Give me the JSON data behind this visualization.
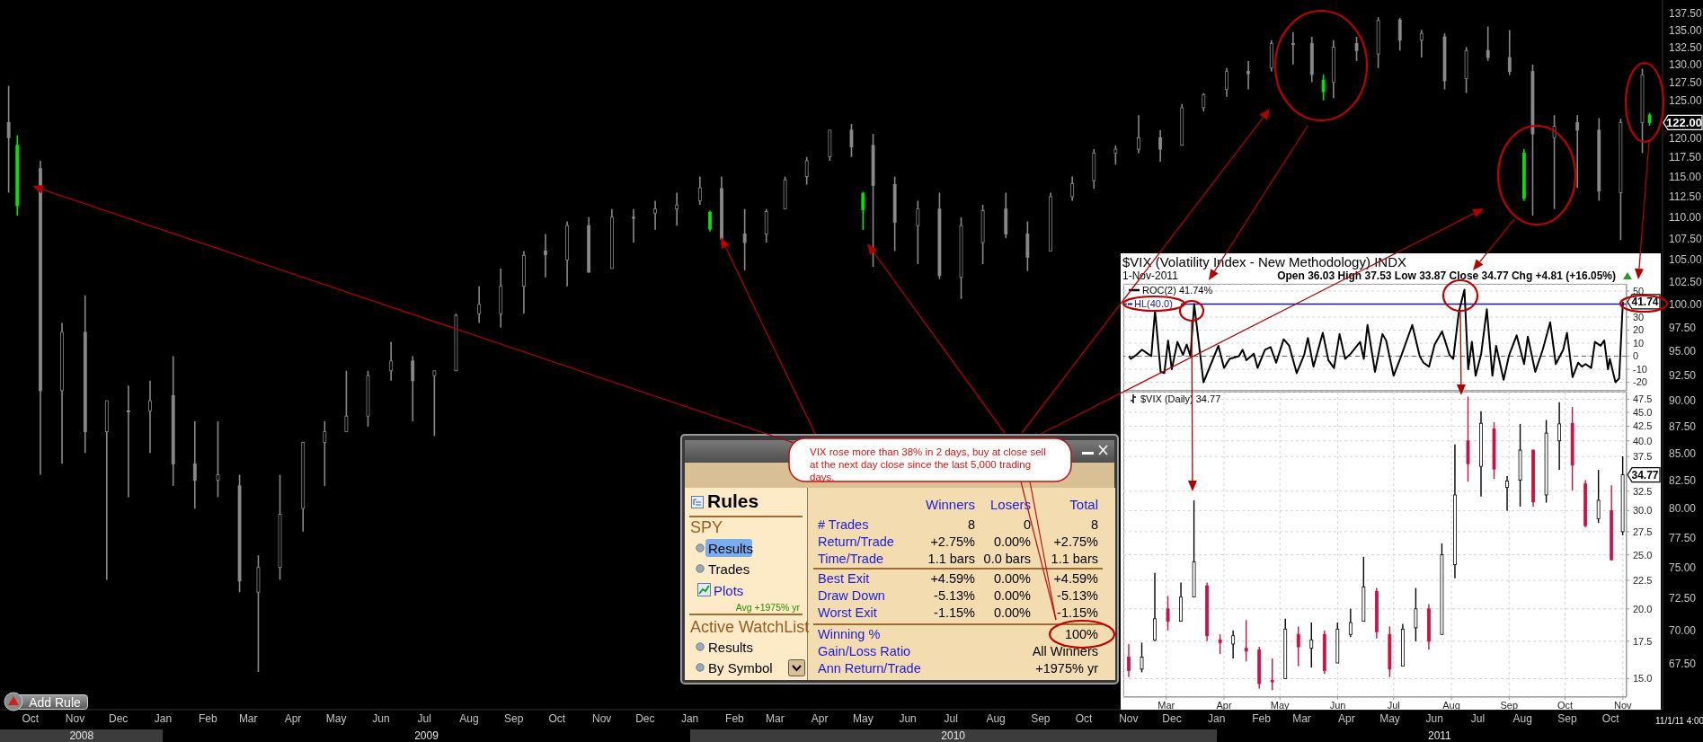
{
  "chart_data": [
    {
      "type": "candlestick",
      "log": "y",
      "ylim": [
        64.2,
        139.5
      ],
      "xlim": [
        "2008-09-10",
        "2011-11-06"
      ],
      "yticks": [
        {
          "value": 67.5,
          "label": "67.50"
        },
        {
          "value": 70,
          "label": "70.00"
        },
        {
          "value": 72.5,
          "label": "72.50"
        },
        {
          "value": 75,
          "label": "75.00"
        },
        {
          "value": 77.5,
          "label": "77.50"
        },
        {
          "value": 80,
          "label": "80.00"
        },
        {
          "value": 82.5,
          "label": "82.50"
        },
        {
          "value": 85,
          "label": "85.00"
        },
        {
          "value": 87.5,
          "label": "87.50"
        },
        {
          "value": 90,
          "label": "90.00"
        },
        {
          "value": 92.5,
          "label": "92.50"
        },
        {
          "value": 95,
          "label": "95.00"
        },
        {
          "value": 97.5,
          "label": "97.50"
        },
        {
          "value": 100,
          "label": "100.00"
        },
        {
          "value": 102.5,
          "label": "102.50"
        },
        {
          "value": 105,
          "label": "105.00"
        },
        {
          "value": 107.5,
          "label": "107.50"
        },
        {
          "value": 110,
          "label": "110.00"
        },
        {
          "value": 112.5,
          "label": "112.50"
        },
        {
          "value": 115,
          "label": "115.00"
        },
        {
          "value": 117.5,
          "label": "117.50"
        },
        {
          "value": 120,
          "label": "120.00"
        },
        {
          "value": 125,
          "label": "125.00"
        },
        {
          "value": 127.5,
          "label": "127.50"
        },
        {
          "value": 130,
          "label": "130.00"
        },
        {
          "value": 132.5,
          "label": "132.50"
        },
        {
          "value": 135,
          "label": "135.00"
        },
        {
          "value": 137.5,
          "label": "137.50"
        }
      ],
      "xticks": [
        {
          "value": "2008-10",
          "label": "Oct"
        },
        {
          "value": "2008-11",
          "label": "Nov"
        },
        {
          "value": "2008-12",
          "label": "Dec"
        },
        {
          "value": "2009-01",
          "label": "Jan"
        },
        {
          "value": "2009-02",
          "label": "Feb"
        },
        {
          "value": "2009-03",
          "label": "Mar"
        },
        {
          "value": "2009-04",
          "label": "Apr"
        },
        {
          "value": "2009-05",
          "label": "May"
        },
        {
          "value": "2009-06",
          "label": "Jun"
        },
        {
          "value": "2009-07",
          "label": "Jul"
        },
        {
          "value": "2009-08",
          "label": "Aug"
        },
        {
          "value": "2009-09",
          "label": "Sep"
        },
        {
          "value": "2009-10",
          "label": "Oct"
        },
        {
          "value": "2009-11",
          "label": "Nov"
        },
        {
          "value": "2009-12",
          "label": "Dec"
        },
        {
          "value": "2010-01",
          "label": "Jan"
        },
        {
          "value": "2010-02",
          "label": "Feb"
        },
        {
          "value": "2010-03",
          "label": "Mar"
        },
        {
          "value": "2010-04",
          "label": "Apr"
        },
        {
          "value": "2010-05",
          "label": "May"
        },
        {
          "value": "2010-06",
          "label": "Jun"
        },
        {
          "value": "2010-07",
          "label": "Jul"
        },
        {
          "value": "2010-08",
          "label": "Aug"
        },
        {
          "value": "2010-09",
          "label": "Sep"
        },
        {
          "value": "2010-10",
          "label": "Oct"
        },
        {
          "value": "2010-11",
          "label": "Nov"
        },
        {
          "value": "2010-12",
          "label": "Dec"
        },
        {
          "value": "2011-01",
          "label": "Jan"
        },
        {
          "value": "2011-02",
          "label": "Feb"
        },
        {
          "value": "2011-03",
          "label": "Mar"
        },
        {
          "value": "2011-04",
          "label": "Apr"
        },
        {
          "value": "2011-05",
          "label": "May"
        },
        {
          "value": "2011-06",
          "label": "Jun"
        },
        {
          "value": "2011-07",
          "label": "Jul"
        },
        {
          "value": "2011-08",
          "label": "Aug"
        },
        {
          "value": "2011-09",
          "label": "Sep"
        },
        {
          "value": "2011-10",
          "label": "Oct"
        }
      ],
      "series": [
        {
          "color": "#8a8a8a",
          "x": [
            "2008-09-16",
            "2008-10-08",
            "2008-10-23",
            "2008-11-08",
            "2008-11-23",
            "2008-12-08",
            "2008-12-23",
            "2009-01-08",
            "2009-01-23",
            "2009-02-08",
            "2009-02-23",
            "2009-03-08",
            "2009-03-23",
            "2009-04-08",
            "2009-04-23",
            "2009-05-08",
            "2009-05-23",
            "2009-06-08",
            "2009-06-23",
            "2009-07-08",
            "2009-07-23",
            "2009-08-08",
            "2009-08-23",
            "2009-09-08",
            "2009-09-23",
            "2009-10-08",
            "2009-10-23",
            "2009-11-08",
            "2009-11-23",
            "2009-12-08",
            "2009-12-23",
            "2010-01-08",
            "2010-01-23",
            "2010-02-08",
            "2010-02-23",
            "2010-03-08",
            "2010-03-23",
            "2010-04-08",
            "2010-04-23",
            "2010-05-08",
            "2010-05-23",
            "2010-06-08",
            "2010-06-23",
            "2010-07-08",
            "2010-07-23",
            "2010-08-08",
            "2010-08-23",
            "2010-09-08",
            "2010-09-23",
            "2010-10-08",
            "2010-10-23",
            "2010-11-08",
            "2010-11-23",
            "2010-12-08",
            "2010-12-23",
            "2011-01-08",
            "2011-01-23",
            "2011-02-08",
            "2011-02-23",
            "2011-03-08",
            "2011-03-23",
            "2011-04-08",
            "2011-04-23",
            "2011-05-08",
            "2011-05-23",
            "2011-06-08",
            "2011-06-23",
            "2011-07-08",
            "2011-07-23",
            "2011-08-08",
            "2011-08-23",
            "2011-09-08",
            "2011-09-23",
            "2011-10-08",
            "2011-10-23"
          ],
          "ohlc": [
            [
              122,
              127,
              113,
              120
            ],
            [
              116,
              117,
              83,
              91
            ],
            [
              91,
              98,
              84,
              97
            ],
            [
              97,
              101,
              85,
              87
            ],
            [
              87,
              90,
              74,
              90
            ],
            [
              89,
              91.5,
              81,
              89
            ],
            [
              89,
              92,
              85,
              90
            ],
            [
              90.5,
              94.5,
              82,
              84
            ],
            [
              84,
              88,
              80,
              82.5
            ],
            [
              82.5,
              88,
              81,
              83
            ],
            [
              82,
              83,
              73,
              73.9
            ],
            [
              73,
              76,
              66.9,
              75
            ],
            [
              75,
              83,
              74,
              79.5
            ],
            [
              80,
              86,
              78,
              86
            ],
            [
              86,
              88,
              82,
              87
            ],
            [
              87,
              93,
              87,
              88.5
            ],
            [
              88.5,
              93,
              87.5,
              92.5
            ],
            [
              93,
              96,
              92,
              94
            ],
            [
              94,
              94.5,
              88,
              92
            ],
            [
              92.5,
              93,
              86.6,
              93
            ],
            [
              93,
              99,
              93,
              98.8
            ],
            [
              99,
              102,
              98,
              100
            ],
            [
              99,
              104,
              97.5,
              102
            ],
            [
              102,
              106,
              99,
              105.5
            ],
            [
              106,
              108,
              103,
              105.6
            ],
            [
              105,
              109.5,
              102,
              109
            ],
            [
              109,
              110,
              103.5,
              103.6
            ],
            [
              104,
              111,
              104,
              110
            ],
            [
              110,
              111,
              107,
              110
            ],
            [
              110.5,
              112,
              108.5,
              111
            ],
            [
              111,
              113,
              109,
              111.5
            ],
            [
              112,
              115,
              111.5,
              113.6
            ],
            [
              113.5,
              115,
              107.2,
              107.4
            ],
            [
              108,
              111,
              103.8,
              107
            ],
            [
              108,
              111,
              107,
              110.7
            ],
            [
              111,
              115,
              111,
              114.6
            ],
            [
              115,
              117.5,
              114,
              117
            ],
            [
              117.5,
              121,
              117,
              121
            ],
            [
              121,
              121.8,
              117.5,
              118.8
            ],
            [
              119,
              120.5,
              104.2,
              113.9
            ],
            [
              114,
              115,
              106,
              109.4
            ],
            [
              109,
              112,
              104.5,
              111
            ],
            [
              111,
              113,
              102.8,
              103.2
            ],
            [
              103,
              110,
              100.6,
              109
            ],
            [
              107,
              111.5,
              104.5,
              110.8
            ],
            [
              111,
              113,
              107.5,
              108
            ],
            [
              108,
              109.5,
              103.7,
              105.3
            ],
            [
              106,
              113,
              106,
              112.5
            ],
            [
              112.5,
              115,
              112,
              114.1
            ],
            [
              114.5,
              118.5,
              113.5,
              118
            ],
            [
              118,
              119,
              116.5,
              118.5
            ],
            [
              118.5,
              123,
              118,
              120
            ],
            [
              120,
              121,
              116.9,
              118.5
            ],
            [
              119,
              124.5,
              119,
              124
            ],
            [
              124,
              126,
              123.5,
              125.8
            ],
            [
              126.5,
              129.5,
              125.5,
              129
            ],
            [
              129,
              130.5,
              126.5,
              128.7
            ],
            [
              129.5,
              133.5,
              129,
              133
            ],
            [
              133,
              134.7,
              130,
              133
            ],
            [
              133,
              134,
              127.5,
              128.6
            ],
            [
              127.5,
              133.5,
              125.3,
              132.5
            ],
            [
              133,
              134,
              130.5,
              132
            ],
            [
              131.5,
              136.9,
              129.5,
              136.4
            ],
            [
              136.5,
              136.8,
              132,
              133.5
            ],
            [
              133.5,
              135,
              131,
              134.5
            ],
            [
              134,
              134.5,
              126.5,
              127.7
            ],
            [
              128,
              132.5,
              126,
              132
            ],
            [
              132,
              135.5,
              130.5,
              131
            ],
            [
              131,
              135,
              128.5,
              129
            ],
            [
              129,
              130,
              110.2,
              120.5
            ],
            [
              120,
              123,
              111,
              121.5
            ],
            [
              122,
              123,
              113.6,
              121
            ],
            [
              121,
              122.6,
              112,
              113.2
            ],
            [
              113,
              122.5,
              107.3,
              122
            ],
            [
              122,
              129.4,
              118,
              128.5
            ]
          ]
        },
        {
          "color": "#00e600",
          "x": [
            "2008-09-22",
            "2010-01-15",
            "2010-05-01",
            "2011-03-16",
            "2011-08-02",
            "2011-10-28"
          ],
          "ohlc": [
            [
              119,
              120.3,
              110.2,
              111.4
            ],
            [
              110.6,
              110.8,
              108.3,
              108.6
            ],
            [
              112.9,
              113.1,
              108.5,
              110.9
            ],
            [
              127.8,
              128.6,
              125,
              126.2
            ],
            [
              118,
              118.5,
              112,
              112.3
            ],
            [
              123,
              123.3,
              121.6,
              122
            ]
          ]
        }
      ],
      "annotations": [
        {
          "text": "122.00",
          "x": "2011-10-28",
          "y": 122
        },
        "Add Rule",
        "11/1/11 4:00",
        "2008",
        "2009",
        "2010",
        "2011"
      ]
    },
    {
      "type": "line",
      "title": "$VIX (Volatility Index - New Methodology) INDX",
      "subtitle": "1-Nov-2011",
      "legend": "top left",
      "grid": true,
      "tick_labels": "y",
      "xlim": [
        "2011-02-06",
        "2011-11-03"
      ],
      "ylim": [
        -26.5,
        55.5
      ],
      "yticks": [
        -20,
        -10,
        0,
        10,
        20,
        30,
        {
          "value": 40,
          "label": null
        },
        50
      ],
      "xticks": [
        {
          "value": "2011-03",
          "label": null
        },
        {
          "value": "2011-04",
          "label": null
        },
        {
          "value": "2011-05",
          "label": null
        },
        {
          "value": "2011-06",
          "label": null
        },
        {
          "value": "2011-07",
          "label": null
        },
        {
          "value": "2011-08",
          "label": null
        },
        {
          "value": "2011-09",
          "label": null
        },
        {
          "value": "2011-10",
          "label": null
        },
        {
          "value": "2011-11",
          "label": null
        }
      ],
      "ref_lines": [
        {
          "axis": "y",
          "value": 40,
          "label": "HL(40.0)",
          "color": "#1a1a9e"
        },
        {
          "axis": "y",
          "value": 0,
          "color": "#666666",
          "line_style": "dashed"
        }
      ],
      "series": [
        {
          "name": "ROC(2) 41.74%",
          "color": "#000000",
          "x": [
            "2011-02-09",
            "2011-02-10",
            "2011-02-13",
            "2011-02-16",
            "2011-02-19",
            "2011-02-21",
            "2011-02-23",
            "2011-02-26",
            "2011-02-28",
            "2011-03-02",
            "2011-03-04",
            "2011-03-07",
            "2011-03-10",
            "2011-03-12",
            "2011-03-14",
            "2011-03-16",
            "2011-03-21",
            "2011-03-25",
            "2011-03-29",
            "2011-04-01",
            "2011-04-04",
            "2011-04-09",
            "2011-04-11",
            "2011-04-13",
            "2011-04-17",
            "2011-04-19",
            "2011-04-23",
            "2011-04-26",
            "2011-04-29",
            "2011-05-03",
            "2011-05-06",
            "2011-05-10",
            "2011-05-14",
            "2011-05-16",
            "2011-05-19",
            "2011-05-24",
            "2011-05-27",
            "2011-05-30",
            "2011-06-02",
            "2011-06-05",
            "2011-06-08",
            "2011-06-13",
            "2011-06-15",
            "2011-06-17",
            "2011-06-21",
            "2011-06-25",
            "2011-06-27",
            "2011-07-01",
            "2011-07-05",
            "2011-07-11",
            "2011-07-15",
            "2011-07-17",
            "2011-07-20",
            "2011-07-23",
            "2011-07-27",
            "2011-07-31",
            "2011-08-02",
            "2011-08-05",
            "2011-08-08",
            "2011-08-10",
            "2011-08-12",
            "2011-08-14",
            "2011-08-17",
            "2011-08-20",
            "2011-08-23",
            "2011-08-25",
            "2011-08-29",
            "2011-09-01",
            "2011-09-05",
            "2011-09-09",
            "2011-09-11",
            "2011-09-15",
            "2011-09-19",
            "2011-09-23",
            "2011-09-26",
            "2011-09-30",
            "2011-10-02",
            "2011-10-05",
            "2011-10-08",
            "2011-10-10",
            "2011-10-12",
            "2011-10-15",
            "2011-10-17",
            "2011-10-20",
            "2011-10-22",
            "2011-10-24",
            "2011-10-25",
            "2011-10-28",
            "2011-10-30",
            "2011-11-01"
          ],
          "values": [
            0,
            -2,
            1,
            5,
            2,
            0,
            35,
            -12,
            -13,
            12,
            -10,
            11,
            1,
            9,
            0,
            40,
            -20,
            -6,
            8,
            -9,
            -2,
            0,
            5,
            -3,
            2,
            -9,
            5,
            7,
            -5,
            13,
            8,
            -13,
            1,
            14,
            -8,
            18,
            -3,
            -9,
            17,
            -2,
            2,
            11,
            -2,
            24,
            -12,
            17,
            12,
            -15,
            0,
            24,
            0,
            -5,
            -8,
            9,
            19,
            1,
            -2,
            34,
            51,
            -10,
            11,
            -15,
            2,
            36,
            -15,
            8,
            -18,
            1,
            16,
            -6,
            15,
            -12,
            5,
            26,
            -6,
            5,
            18,
            -16,
            -5,
            -8,
            -6,
            -9,
            11,
            8,
            12,
            -10,
            -2,
            -20,
            -17,
            41.74
          ]
        }
      ],
      "annotations": [
        "Open 36.03 High 37.53 Low 33.87 Close 34.77 Chg +4.81 (+16.05%)",
        {
          "text": "41.74",
          "x": "2011-11-01",
          "y": 41.74
        }
      ]
    },
    {
      "type": "candlestick",
      "log": true,
      "legend": "top left",
      "grid": true,
      "xlim": [
        "2011-02-06",
        "2011-11-03"
      ],
      "ylim": [
        13.9,
        49
      ],
      "yticks": [
        {
          "value": 15,
          "label": "15.0"
        },
        17.5,
        {
          "value": 20,
          "label": "20.0"
        },
        22.5,
        {
          "value": 25,
          "label": "25.0"
        },
        27.5,
        {
          "value": 30,
          "label": "30.0"
        },
        32.5,
        37.5,
        {
          "value": 40,
          "label": "40.0"
        },
        42.5,
        {
          "value": 45,
          "label": "45.0"
        },
        47.5
      ],
      "xticks": [
        {
          "value": "2011-03",
          "label": "Mar"
        },
        {
          "value": "2011-04",
          "label": "Apr"
        },
        {
          "value": "2011-05",
          "label": "May"
        },
        {
          "value": "2011-06",
          "label": "Jun"
        },
        {
          "value": "2011-07",
          "label": "Jul"
        },
        {
          "value": "2011-08",
          "label": "Aug"
        },
        {
          "value": "2011-09",
          "label": "Sep"
        },
        {
          "value": "2011-10",
          "label": "Oct"
        },
        {
          "value": "2011-11",
          "label": "Nov"
        }
      ],
      "series": [
        {
          "name": "$VIX (Daily) 34.77",
          "color": "#000000",
          "x": [
            "2011-02-09",
            "2011-02-16",
            "2011-02-23",
            "2011-03-02",
            "2011-03-09",
            "2011-03-16",
            "2011-03-23",
            "2011-03-30",
            "2011-04-06",
            "2011-04-13",
            "2011-04-20",
            "2011-04-27",
            "2011-05-04",
            "2011-05-11",
            "2011-05-18",
            "2011-05-25",
            "2011-06-01",
            "2011-06-08",
            "2011-06-15",
            "2011-06-22",
            "2011-06-29",
            "2011-07-06",
            "2011-07-13",
            "2011-07-20",
            "2011-07-27",
            "2011-08-03",
            "2011-08-10",
            "2011-08-17",
            "2011-08-24",
            "2011-08-31",
            "2011-09-07",
            "2011-09-14",
            "2011-09-21",
            "2011-09-28",
            "2011-10-05",
            "2011-10-12",
            "2011-10-19",
            "2011-10-26",
            "2011-11-01"
          ],
          "ohlc": [
            [
              16.4,
              17.3,
              15.1,
              15.5
            ],
            [
              15.6,
              17.4,
              15.4,
              16.4
            ],
            [
              17.6,
              23.2,
              17.5,
              19.2
            ],
            [
              20,
              21.1,
              18.3,
              19
            ],
            [
              19,
              22.3,
              19,
              21
            ],
            [
              21,
              31.3,
              21,
              24.3
            ],
            [
              22,
              22.3,
              17.5,
              17.9
            ],
            [
              17.6,
              18,
              16.6,
              17.4
            ],
            [
              17.3,
              18.3,
              16.3,
              17.9
            ],
            [
              17,
              19.1,
              16.1,
              16.8
            ],
            [
              16.9,
              17.1,
              14.4,
              14.7
            ],
            [
              14.9,
              16.3,
              14.3,
              14.8
            ],
            [
              15,
              19.2,
              15,
              18.4
            ],
            [
              18,
              18.6,
              15.8,
              17.1
            ],
            [
              17,
              18.9,
              15.7,
              17.6
            ],
            [
              18,
              18.3,
              15.3,
              15.5
            ],
            [
              16,
              18.9,
              16,
              18.4
            ],
            [
              18,
              20,
              17.8,
              18.9
            ],
            [
              19,
              24.8,
              19,
              21.9
            ],
            [
              21.5,
              21.8,
              17.7,
              18.2
            ],
            [
              18,
              18.6,
              15.1,
              15.6
            ],
            [
              15.8,
              18.8,
              15.8,
              18.4
            ],
            [
              18.5,
              21.8,
              17.5,
              20
            ],
            [
              20,
              20.4,
              16.9,
              17.5
            ],
            [
              18,
              26.2,
              18,
              25
            ],
            [
              24,
              39.4,
              22.7,
              32
            ],
            [
              40,
              48,
              33.8,
              36.4
            ],
            [
              36,
              45.2,
              31.8,
              43
            ],
            [
              42,
              43.2,
              34.2,
              35.6
            ],
            [
              33,
              34.6,
              30,
              33.9
            ],
            [
              34,
              42.9,
              30.5,
              38.5
            ],
            [
              38.5,
              38.6,
              30.5,
              31.1
            ],
            [
              32,
              43.6,
              31,
              41.3
            ],
            [
              40,
              46.9,
              35.5,
              42.9
            ],
            [
              43,
              46,
              32.6,
              36.2
            ],
            [
              33.5,
              34,
              28,
              28.2
            ],
            [
              29,
              35.5,
              28.5,
              31.3
            ],
            [
              30,
              33.3,
              24.4,
              24.5
            ],
            [
              27.5,
              37.53,
              27.1,
              34.77
            ]
          ],
          "colors": [
            "#cc1144",
            "#000000",
            "#000000",
            "#cc1144",
            "#000000",
            "#000000",
            "#cc1144",
            "#cc1144",
            "#000000",
            "#cc1144",
            "#cc1144",
            "#cc1144",
            "#000000",
            "#cc1144",
            "#000000",
            "#cc1144",
            "#000000",
            "#000000",
            "#000000",
            "#cc1144",
            "#cc1144",
            "#000000",
            "#000000",
            "#cc1144",
            "#000000",
            "#000000",
            "#cc1144",
            "#000000",
            "#cc1144",
            "#000000",
            "#000000",
            "#cc1144",
            "#000000",
            "#000000",
            "#cc1144",
            "#cc1144",
            "#000000",
            "#cc1144",
            "#000000"
          ]
        }
      ],
      "annotations": [
        {
          "text": "34.77",
          "x": "2011-11-01",
          "y": 34.77
        }
      ]
    },
    {
      "type": "other",
      "title": "Rules",
      "annotations": [
        "VIX rose more than 38% in 2 days, buy at close sell at the next day close since the last 5,000 trading days.",
        "SPY",
        "Results",
        "Trades",
        "Plots",
        "Avg +1975% yr",
        "Active WatchList",
        "Results",
        "By Symbol",
        "Winners",
        "Losers",
        "Total",
        "# Trades",
        "8",
        "0",
        "8",
        "Return/Trade",
        "+2.75%",
        "0.00%",
        "+2.75%",
        "Time/Trade",
        "1.1 bars",
        "0.0 bars",
        "1.1 bars",
        "Best Exit",
        "+4.59%",
        "0.00%",
        "+4.59%",
        "Draw Down",
        "-5.13%",
        "0.00%",
        "-5.13%",
        "Worst Exit",
        "-1.15%",
        "0.00%",
        "-1.15%",
        "Winning %",
        "100%",
        "Gain/Loss Ratio",
        "All Winners",
        "Ann Return/Trade",
        "+1975% yr"
      ]
    }
  ]
}
